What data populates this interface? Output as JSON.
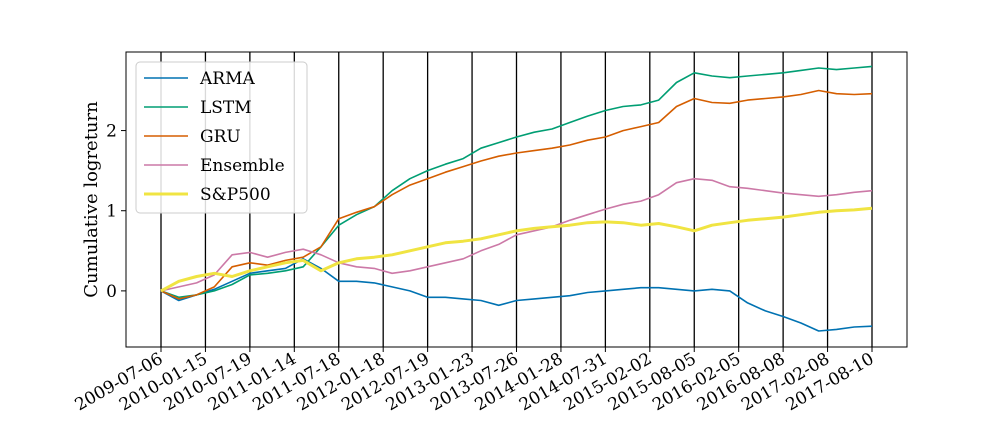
{
  "chart_data": {
    "type": "line",
    "title": "",
    "xlabel": "",
    "ylabel": "Cumulative logreturn",
    "ylim": [
      -0.7,
      2.98
    ],
    "yticks": [
      0,
      1,
      2
    ],
    "xticks": [
      "2009-07-06",
      "2010-01-15",
      "2010-07-19",
      "2011-01-14",
      "2011-07-18",
      "2012-01-18",
      "2012-07-19",
      "2013-01-23",
      "2013-07-26",
      "2014-01-28",
      "2014-07-31",
      "2015-02-02",
      "2015-08-05",
      "2016-02-05",
      "2016-08-08",
      "2017-02-08",
      "2017-08-10"
    ],
    "vertical_lines_at_ticks": true,
    "grid": false,
    "legend_position": "upper-left",
    "series": [
      {
        "name": "ARMA",
        "color": "#0072b2",
        "values": [
          0,
          -0.12,
          -0.05,
          0.02,
          0.12,
          0.22,
          0.25,
          0.28,
          0.4,
          0.28,
          0.12,
          0.12,
          0.1,
          0.05,
          0.0,
          -0.08,
          -0.08,
          -0.1,
          -0.12,
          -0.18,
          -0.12,
          -0.1,
          -0.08,
          -0.06,
          -0.02,
          0.0,
          0.02,
          0.04,
          0.04,
          0.02,
          0.0,
          0.02,
          0.0,
          -0.15,
          -0.25,
          -0.32,
          -0.4,
          -0.5,
          -0.48,
          -0.45,
          -0.44
        ]
      },
      {
        "name": "LSTM",
        "color": "#009e73",
        "values": [
          0,
          -0.08,
          -0.05,
          0.0,
          0.08,
          0.2,
          0.22,
          0.25,
          0.3,
          0.55,
          0.82,
          0.95,
          1.05,
          1.25,
          1.4,
          1.5,
          1.58,
          1.65,
          1.78,
          1.85,
          1.92,
          1.98,
          2.02,
          2.1,
          2.18,
          2.25,
          2.3,
          2.32,
          2.38,
          2.6,
          2.72,
          2.68,
          2.66,
          2.68,
          2.7,
          2.72,
          2.75,
          2.78,
          2.76,
          2.78,
          2.8
        ]
      },
      {
        "name": "GRU",
        "color": "#d55e00",
        "values": [
          0,
          -0.1,
          -0.05,
          0.05,
          0.3,
          0.35,
          0.32,
          0.38,
          0.42,
          0.55,
          0.9,
          0.98,
          1.05,
          1.2,
          1.32,
          1.4,
          1.48,
          1.55,
          1.62,
          1.68,
          1.72,
          1.75,
          1.78,
          1.82,
          1.88,
          1.92,
          2.0,
          2.05,
          2.1,
          2.3,
          2.4,
          2.35,
          2.34,
          2.38,
          2.4,
          2.42,
          2.45,
          2.5,
          2.46,
          2.45,
          2.46
        ]
      },
      {
        "name": "Ensemble",
        "color": "#cc79a7",
        "values": [
          0,
          0.05,
          0.1,
          0.2,
          0.45,
          0.48,
          0.42,
          0.48,
          0.52,
          0.45,
          0.35,
          0.3,
          0.28,
          0.22,
          0.25,
          0.3,
          0.35,
          0.4,
          0.5,
          0.58,
          0.7,
          0.75,
          0.8,
          0.88,
          0.95,
          1.02,
          1.08,
          1.12,
          1.2,
          1.35,
          1.4,
          1.38,
          1.3,
          1.28,
          1.25,
          1.22,
          1.2,
          1.18,
          1.2,
          1.23,
          1.25
        ]
      },
      {
        "name": "S&P500",
        "color": "#f0e442",
        "values": [
          0,
          0.12,
          0.18,
          0.22,
          0.18,
          0.25,
          0.3,
          0.35,
          0.38,
          0.25,
          0.35,
          0.4,
          0.42,
          0.45,
          0.5,
          0.55,
          0.6,
          0.62,
          0.65,
          0.7,
          0.75,
          0.78,
          0.8,
          0.82,
          0.85,
          0.86,
          0.85,
          0.82,
          0.84,
          0.8,
          0.75,
          0.82,
          0.85,
          0.88,
          0.9,
          0.92,
          0.95,
          0.98,
          1.0,
          1.01,
          1.03
        ]
      }
    ]
  }
}
